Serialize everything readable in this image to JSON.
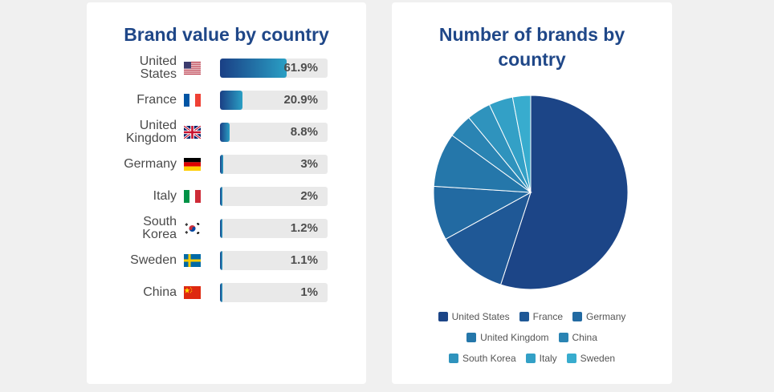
{
  "chart_data": [
    {
      "type": "bar",
      "title": "Brand value by country",
      "categories": [
        "United States",
        "France",
        "United Kingdom",
        "Germany",
        "Italy",
        "South Korea",
        "Sweden",
        "China"
      ],
      "values": [
        61.9,
        20.9,
        8.8,
        3,
        2,
        1.2,
        1.1,
        1
      ],
      "value_labels": [
        "61.9%",
        "20.9%",
        "8.8%",
        "3%",
        "2%",
        "1.2%",
        "1.1%",
        "1%"
      ],
      "unit": "%",
      "ylim": [
        0,
        100
      ],
      "flags": [
        "us-flag-icon",
        "fr-flag-icon",
        "uk-flag-icon",
        "de-flag-icon",
        "it-flag-icon",
        "kr-flag-icon",
        "se-flag-icon",
        "cn-flag-icon"
      ],
      "bar_gradient": [
        "#1a3f85",
        "#2a9fc4"
      ],
      "track_color": "#e9e9e9"
    },
    {
      "type": "pie",
      "title": "Number of brands by country",
      "categories": [
        "United States",
        "France",
        "Germany",
        "United Kingdom",
        "China",
        "South Korea",
        "Italy",
        "Sweden"
      ],
      "values": [
        55,
        12,
        9,
        9,
        4,
        4,
        4,
        3
      ],
      "colors": [
        "#1c4587",
        "#1f5896",
        "#226aa2",
        "#2577aa",
        "#2a84b3",
        "#2f93bd",
        "#33a0c6",
        "#38acce"
      ],
      "legend": "bottom"
    }
  ]
}
